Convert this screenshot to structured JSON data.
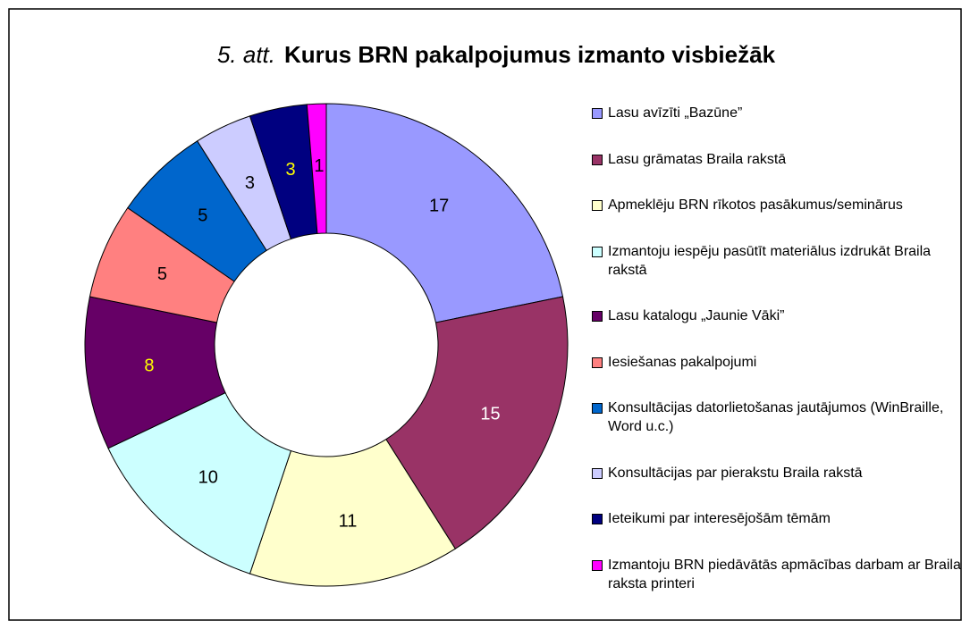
{
  "chart_data": {
    "type": "donut",
    "title_number": "5. att.",
    "title": "Kurus BRN pakalpojumus izmanto visbiežāk",
    "categories": [
      "Lasu avīzīti „Bazūne”",
      "Lasu grāmatas Braila rakstā",
      "Apmeklēju BRN rīkotos pasākumus/seminārus",
      "Izmantoju iespēju pasūtīt materiālus izdrukāt Braila rakstā",
      "Lasu katalogu „Jaunie Vāki”",
      "Iesiešanas pakalpojumi",
      "Konsultācijas datorlietošanas jautājumos (WinBraille, Word u.c.)",
      "Konsultācijas par pierakstu Braila rakstā",
      "Ieteikumi par interesējošām tēmām",
      "Izmantoju BRN piedāvātās apmācības darbam ar Braila raksta printeri"
    ],
    "values": [
      17,
      15,
      11,
      10,
      8,
      5,
      5,
      3,
      3,
      1
    ],
    "colors": [
      "#9999ff",
      "#993366",
      "#ffffcc",
      "#ccffff",
      "#660066",
      "#ff8080",
      "#0066cc",
      "#ccccff",
      "#000080",
      "#ff00ff"
    ],
    "label_colors": [
      "#000000",
      "#ffffff",
      "#000000",
      "#000000",
      "#ffff00",
      "#000000",
      "#000000",
      "#000000",
      "#ffff00",
      "#000000"
    ],
    "legend": "right"
  }
}
